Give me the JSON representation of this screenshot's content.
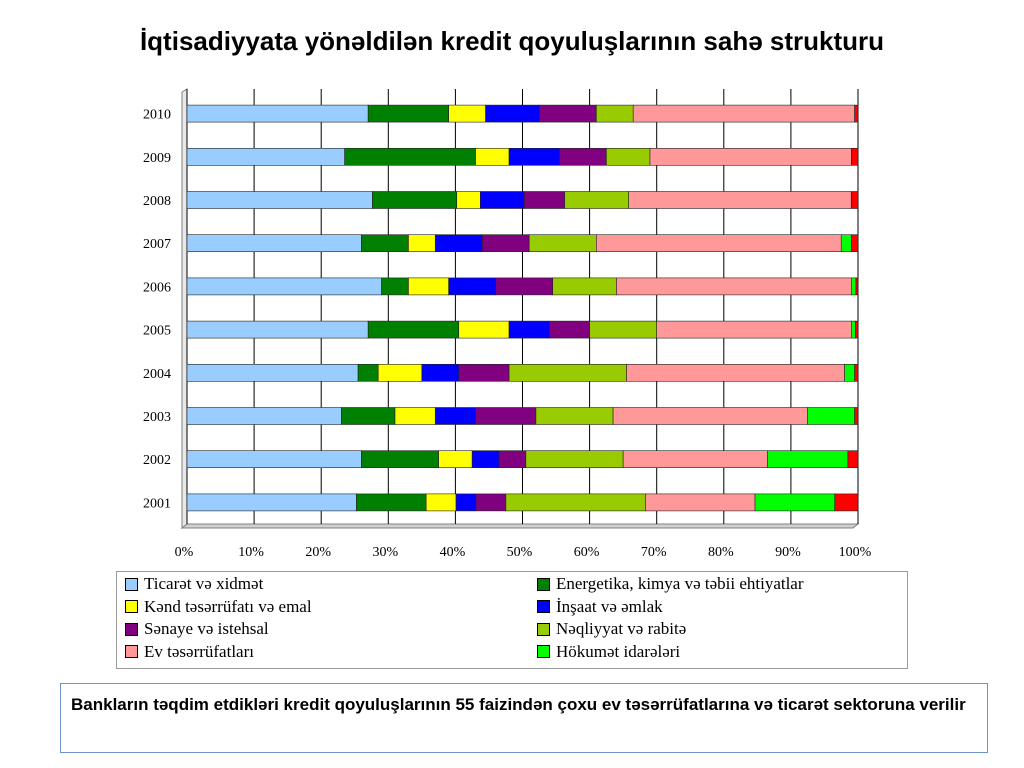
{
  "title": "İqtisadiyyata yönəldilən kredit qoyuluşlarının sahə strukturu",
  "note": "Bankların təqdim etdikləri kredit qoyuluşlarının 55 faizindən çoxu ev təsərrüfatlarına və ticarət sektoruna verilir",
  "chart_data": {
    "type": "bar",
    "orientation": "horizontal",
    "stacked": "percent",
    "categories": [
      "2010",
      "2009",
      "2008",
      "2007",
      "2006",
      "2005",
      "2004",
      "2003",
      "2002",
      "2001"
    ],
    "xticks": [
      "0%",
      "10%",
      "20%",
      "30%",
      "40%",
      "50%",
      "60%",
      "70%",
      "80%",
      "90%",
      "100%"
    ],
    "xlim": [
      0,
      100
    ],
    "grid": "vertical",
    "legend_position": "bottom",
    "series": [
      {
        "name": "Ticarət və xidmət",
        "color": "#99ccff",
        "values": [
          27,
          23.5,
          27.5,
          26,
          29,
          27,
          25.5,
          23,
          26,
          25.5
        ]
      },
      {
        "name": "Energetika, kimya və təbii ehtiyatlar",
        "color": "#008000",
        "values": [
          12,
          19.5,
          12.5,
          7,
          4,
          13.5,
          3,
          8,
          11.5,
          10.5
        ]
      },
      {
        "name": "Kənd təsərrüfatı və emal",
        "color": "#ffff00",
        "values": [
          5.5,
          5,
          3.5,
          4,
          6,
          7.5,
          6.5,
          6,
          5,
          4.5
        ]
      },
      {
        "name": "İnşaat və əmlak",
        "color": "#0000ff",
        "values": [
          8,
          7.5,
          6.5,
          7,
          7,
          6,
          5.5,
          6,
          4,
          3
        ]
      },
      {
        "name": "Sənaye və istehsal",
        "color": "#800080",
        "values": [
          8.5,
          7,
          6,
          7,
          8.5,
          6,
          7.5,
          9,
          4,
          4.5
        ]
      },
      {
        "name": "Nəqliyyat və rabitə",
        "color": "#99cc00",
        "values": [
          5.5,
          6.5,
          9.5,
          10,
          9.5,
          10,
          17.5,
          11.5,
          14.5,
          21
        ]
      },
      {
        "name": "Ev təsərrüfatları",
        "color": "#ff9999",
        "values": [
          33,
          30,
          33,
          36.5,
          35,
          29,
          32.5,
          29,
          21.5,
          16.5
        ]
      },
      {
        "name": "Hökumət idarələri",
        "color": "#00ff00",
        "values": [
          0,
          0,
          0,
          1.5,
          0.7,
          0.6,
          1.5,
          7,
          12,
          12
        ]
      },
      {
        "name": "",
        "color": "#ff0000",
        "values": [
          0.5,
          1,
          1,
          1,
          0.3,
          0.4,
          0.5,
          0.5,
          1.5,
          3.5
        ]
      }
    ]
  }
}
